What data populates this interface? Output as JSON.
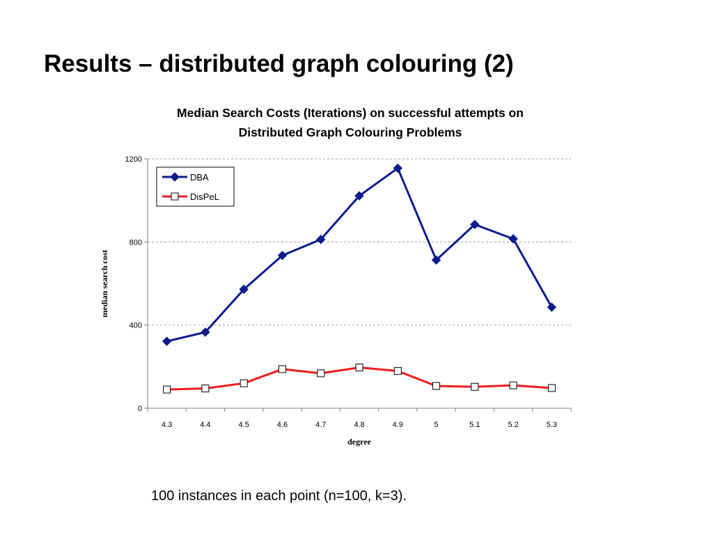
{
  "slide": {
    "title": "Results – distributed graph colouring (2)",
    "caption": "100 instances in each point (n=100, k=3)."
  },
  "chart_data": {
    "type": "line",
    "title_lines": [
      "Median Search Costs (Iterations) on successful attempts on",
      "Distributed Graph Colouring Problems"
    ],
    "xlabel": "degree",
    "ylabel": "median search cost",
    "categories": [
      "4.3",
      "4.4",
      "4.5",
      "4.6",
      "4.7",
      "4.8",
      "4.9",
      "5",
      "5.1",
      "5.2",
      "5.3"
    ],
    "ylim": [
      0,
      1200
    ],
    "yticks": [
      0,
      400,
      800,
      1200
    ],
    "grid": true,
    "legend": "top-left",
    "series": [
      {
        "name": "DBA",
        "color": "#0d1a8c",
        "marker": "diamond",
        "values": [
          322,
          366,
          572,
          735,
          812,
          1022,
          1155,
          713,
          884,
          815,
          486
        ]
      },
      {
        "name": "DisPeL",
        "color": "#ee1c1c",
        "marker": "square",
        "values": [
          90,
          95,
          120,
          188,
          168,
          196,
          179,
          107,
          103,
          110,
          97
        ]
      }
    ]
  }
}
